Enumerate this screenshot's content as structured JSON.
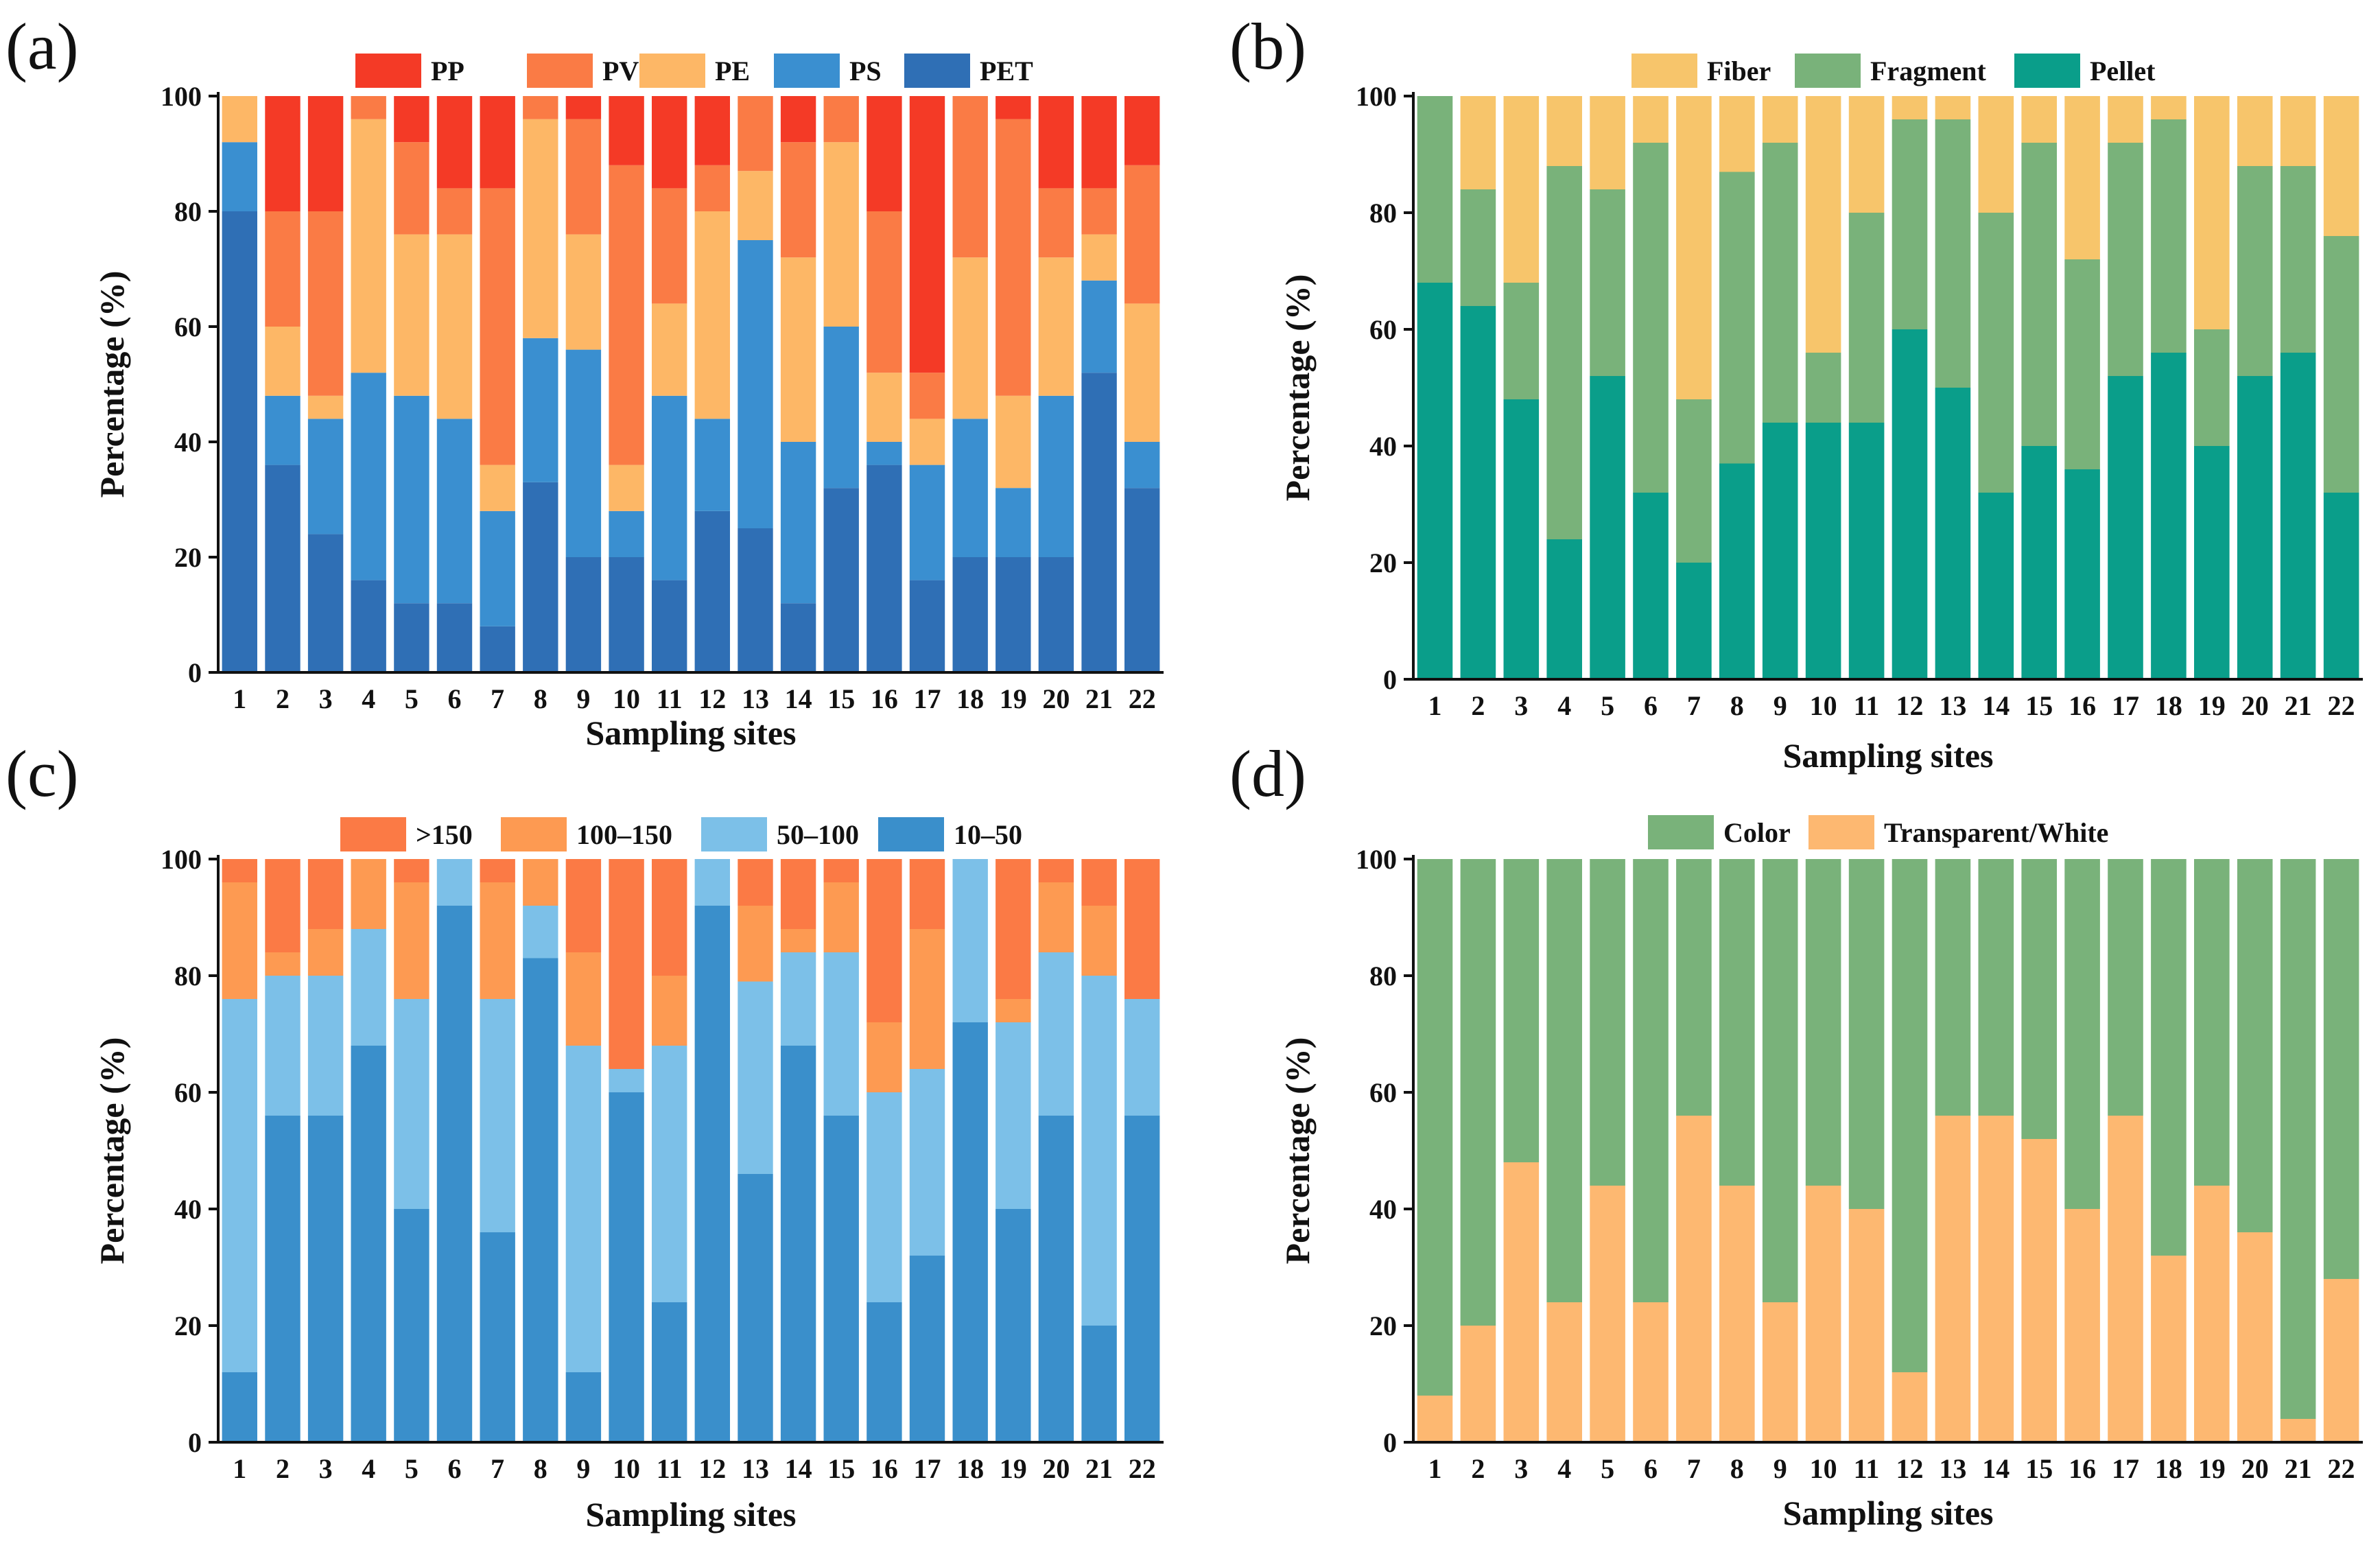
{
  "chart_data": [
    {
      "id": "a",
      "type": "bar",
      "stacked": true,
      "panel_label": "(a)",
      "xlabel": "Sampling sites",
      "ylabel": "Percentage (%)",
      "ylim": [
        0,
        100
      ],
      "yticks": [
        "0",
        "20",
        "40",
        "60",
        "80",
        "100"
      ],
      "categories": [
        "1",
        "2",
        "3",
        "4",
        "5",
        "6",
        "7",
        "8",
        "9",
        "10",
        "11",
        "12",
        "13",
        "14",
        "15",
        "16",
        "17",
        "18",
        "19",
        "20",
        "21",
        "22"
      ],
      "legend_order": [
        "PP",
        "PVC",
        "PE",
        "PS",
        "PET"
      ],
      "series": [
        {
          "name": "PET",
          "color": "#2f6fb5",
          "values": [
            80,
            36,
            24,
            16,
            12,
            12,
            8,
            33,
            20,
            20,
            16,
            28,
            25,
            12,
            32,
            36,
            16,
            20,
            20,
            20,
            52,
            32
          ]
        },
        {
          "name": "PS",
          "color": "#3a8fd0",
          "values": [
            12,
            12,
            20,
            36,
            36,
            32,
            20,
            25,
            36,
            8,
            32,
            16,
            50,
            28,
            28,
            4,
            20,
            24,
            12,
            28,
            16,
            8
          ]
        },
        {
          "name": "PE",
          "color": "#fdb766",
          "values": [
            8,
            12,
            4,
            44,
            28,
            32,
            8,
            38,
            20,
            8,
            16,
            36,
            12,
            32,
            32,
            12,
            8,
            28,
            16,
            24,
            8,
            24
          ]
        },
        {
          "name": "PVC",
          "color": "#fa7b45",
          "values": [
            0,
            20,
            32,
            4,
            16,
            8,
            48,
            4,
            20,
            52,
            20,
            8,
            13,
            20,
            8,
            28,
            8,
            28,
            48,
            12,
            8,
            24
          ]
        },
        {
          "name": "PP",
          "color": "#f43a26",
          "values": [
            0,
            20,
            20,
            0,
            8,
            16,
            16,
            0,
            4,
            12,
            16,
            12,
            0,
            8,
            0,
            20,
            48,
            0,
            4,
            16,
            16,
            12
          ]
        }
      ]
    },
    {
      "id": "b",
      "type": "bar",
      "stacked": true,
      "panel_label": "(b)",
      "xlabel": "Sampling sites",
      "ylabel": "Percentage (%)",
      "ylim": [
        0,
        100
      ],
      "yticks": [
        "0",
        "20",
        "40",
        "60",
        "80",
        "100"
      ],
      "categories": [
        "1",
        "2",
        "3",
        "4",
        "5",
        "6",
        "7",
        "8",
        "9",
        "10",
        "11",
        "12",
        "13",
        "14",
        "15",
        "16",
        "17",
        "18",
        "19",
        "20",
        "21",
        "22"
      ],
      "legend_order": [
        "Fiber",
        "Fragment",
        "Pellet"
      ],
      "series": [
        {
          "name": "Pellet",
          "color": "#0a9e8a",
          "values": [
            68,
            64,
            48,
            24,
            52,
            32,
            20,
            37,
            44,
            44,
            44,
            60,
            50,
            32,
            40,
            36,
            52,
            56,
            40,
            52,
            56,
            32
          ]
        },
        {
          "name": "Fragment",
          "color": "#79b27a",
          "values": [
            32,
            20,
            20,
            64,
            32,
            60,
            28,
            50,
            48,
            12,
            36,
            36,
            46,
            48,
            52,
            36,
            40,
            40,
            20,
            36,
            32,
            44
          ]
        },
        {
          "name": "Fiber",
          "color": "#f7c56b",
          "values": [
            0,
            16,
            32,
            12,
            16,
            8,
            52,
            13,
            8,
            44,
            20,
            4,
            4,
            20,
            8,
            28,
            8,
            4,
            40,
            12,
            12,
            24
          ]
        }
      ]
    },
    {
      "id": "c",
      "type": "bar",
      "stacked": true,
      "panel_label": "(c)",
      "xlabel": "Sampling sites",
      "ylabel": "Percentage (%)",
      "ylim": [
        0,
        100
      ],
      "yticks": [
        "0",
        "20",
        "40",
        "60",
        "80",
        "100"
      ],
      "categories": [
        "1",
        "2",
        "3",
        "4",
        "5",
        "6",
        "7",
        "8",
        "9",
        "10",
        "11",
        "12",
        "13",
        "14",
        "15",
        "16",
        "17",
        "18",
        "19",
        "20",
        "21",
        "22"
      ],
      "legend_order": [
        ">150",
        "100–150",
        "50–100",
        "10–50"
      ],
      "series": [
        {
          "name": "10–50",
          "color": "#3a8fcb",
          "values": [
            12,
            56,
            56,
            68,
            40,
            92,
            36,
            83,
            12,
            60,
            24,
            92,
            46,
            68,
            56,
            24,
            32,
            72,
            40,
            56,
            20,
            56
          ]
        },
        {
          "name": "50–100",
          "color": "#7cc0e8",
          "values": [
            64,
            24,
            24,
            20,
            36,
            8,
            40,
            9,
            56,
            4,
            44,
            8,
            33,
            16,
            28,
            36,
            32,
            28,
            32,
            28,
            60,
            20
          ]
        },
        {
          "name": "100–150",
          "color": "#fd9a52",
          "values": [
            20,
            4,
            8,
            12,
            20,
            0,
            20,
            8,
            16,
            0,
            12,
            0,
            13,
            4,
            12,
            12,
            24,
            0,
            4,
            12,
            12,
            0
          ]
        },
        {
          "name": ">150",
          "color": "#fb7a45",
          "values": [
            4,
            16,
            12,
            0,
            4,
            0,
            4,
            0,
            16,
            36,
            20,
            0,
            8,
            12,
            4,
            28,
            12,
            0,
            24,
            4,
            8,
            24
          ]
        }
      ]
    },
    {
      "id": "d",
      "type": "bar",
      "stacked": true,
      "panel_label": "(d)",
      "xlabel": "Sampling sites",
      "ylabel": "Percentage (%)",
      "ylim": [
        0,
        100
      ],
      "yticks": [
        "0",
        "20",
        "40",
        "60",
        "80",
        "100"
      ],
      "categories": [
        "1",
        "2",
        "3",
        "4",
        "5",
        "6",
        "7",
        "8",
        "9",
        "10",
        "11",
        "12",
        "13",
        "14",
        "15",
        "16",
        "17",
        "18",
        "19",
        "20",
        "21",
        "22"
      ],
      "legend_order": [
        "Color",
        "Transparent/White"
      ],
      "series": [
        {
          "name": "Transparent/White",
          "color": "#fdb871",
          "values": [
            8,
            20,
            48,
            24,
            44,
            24,
            56,
            44,
            24,
            44,
            40,
            12,
            56,
            56,
            52,
            40,
            56,
            32,
            44,
            36,
            4,
            28
          ]
        },
        {
          "name": "Color",
          "color": "#79b27a",
          "values": [
            92,
            80,
            52,
            76,
            56,
            76,
            44,
            56,
            76,
            56,
            60,
            88,
            44,
            44,
            48,
            60,
            44,
            68,
            56,
            64,
            96,
            72
          ]
        }
      ]
    }
  ]
}
